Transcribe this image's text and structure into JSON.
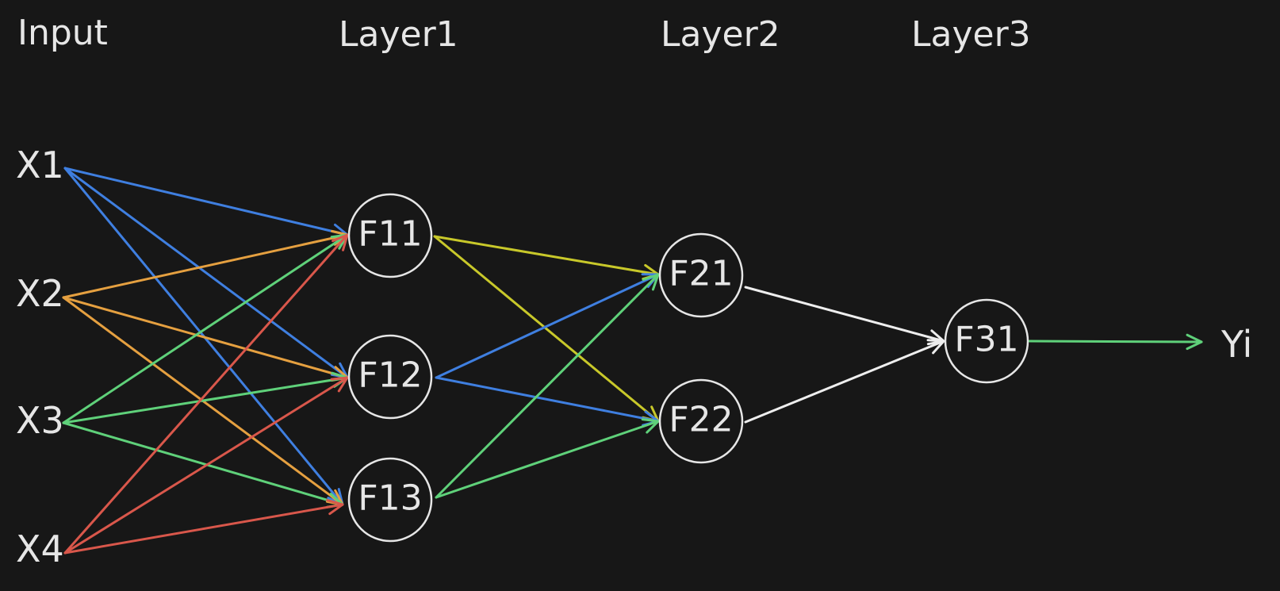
{
  "layers": {
    "input": "Input",
    "layer1": "Layer1",
    "layer2": "Layer2",
    "layer3": "Layer3"
  },
  "inputs": [
    "X1",
    "X2",
    "X3",
    "X4"
  ],
  "nodes": {
    "f11": "F11",
    "f12": "F12",
    "f13": "F13",
    "f21": "F21",
    "f22": "F22",
    "f31": "F31"
  },
  "output": "Yi",
  "colors": {
    "background": "#171717",
    "x1_edges": "#3f7fe0",
    "x2_edges": "#e5a040",
    "x3_edges": "#5fd17a",
    "x4_edges": "#d9574b",
    "f11_edges": "#c8c82a",
    "f12_edges": "#3f7fe0",
    "f13_edges": "#5fd17a",
    "layer2_edges": "#eeeeee",
    "output_edge": "#5fd17a"
  },
  "connections": [
    {
      "from": "X1",
      "to": "F11",
      "color": "x1_edges"
    },
    {
      "from": "X1",
      "to": "F12",
      "color": "x1_edges"
    },
    {
      "from": "X1",
      "to": "F13",
      "color": "x1_edges"
    },
    {
      "from": "X2",
      "to": "F11",
      "color": "x2_edges"
    },
    {
      "from": "X2",
      "to": "F12",
      "color": "x2_edges"
    },
    {
      "from": "X2",
      "to": "F13",
      "color": "x2_edges"
    },
    {
      "from": "X3",
      "to": "F11",
      "color": "x3_edges"
    },
    {
      "from": "X3",
      "to": "F12",
      "color": "x3_edges"
    },
    {
      "from": "X3",
      "to": "F13",
      "color": "x3_edges"
    },
    {
      "from": "X4",
      "to": "F11",
      "color": "x4_edges"
    },
    {
      "from": "X4",
      "to": "F12",
      "color": "x4_edges"
    },
    {
      "from": "X4",
      "to": "F13",
      "color": "x4_edges"
    },
    {
      "from": "F11",
      "to": "F21",
      "color": "f11_edges"
    },
    {
      "from": "F11",
      "to": "F22",
      "color": "f11_edges"
    },
    {
      "from": "F12",
      "to": "F21",
      "color": "f12_edges"
    },
    {
      "from": "F12",
      "to": "F22",
      "color": "f12_edges"
    },
    {
      "from": "F13",
      "to": "F21",
      "color": "f13_edges"
    },
    {
      "from": "F13",
      "to": "F22",
      "color": "f13_edges"
    },
    {
      "from": "F21",
      "to": "F31",
      "color": "layer2_edges"
    },
    {
      "from": "F22",
      "to": "F31",
      "color": "layer2_edges"
    },
    {
      "from": "F31",
      "to": "Yi",
      "color": "output_edge"
    }
  ]
}
